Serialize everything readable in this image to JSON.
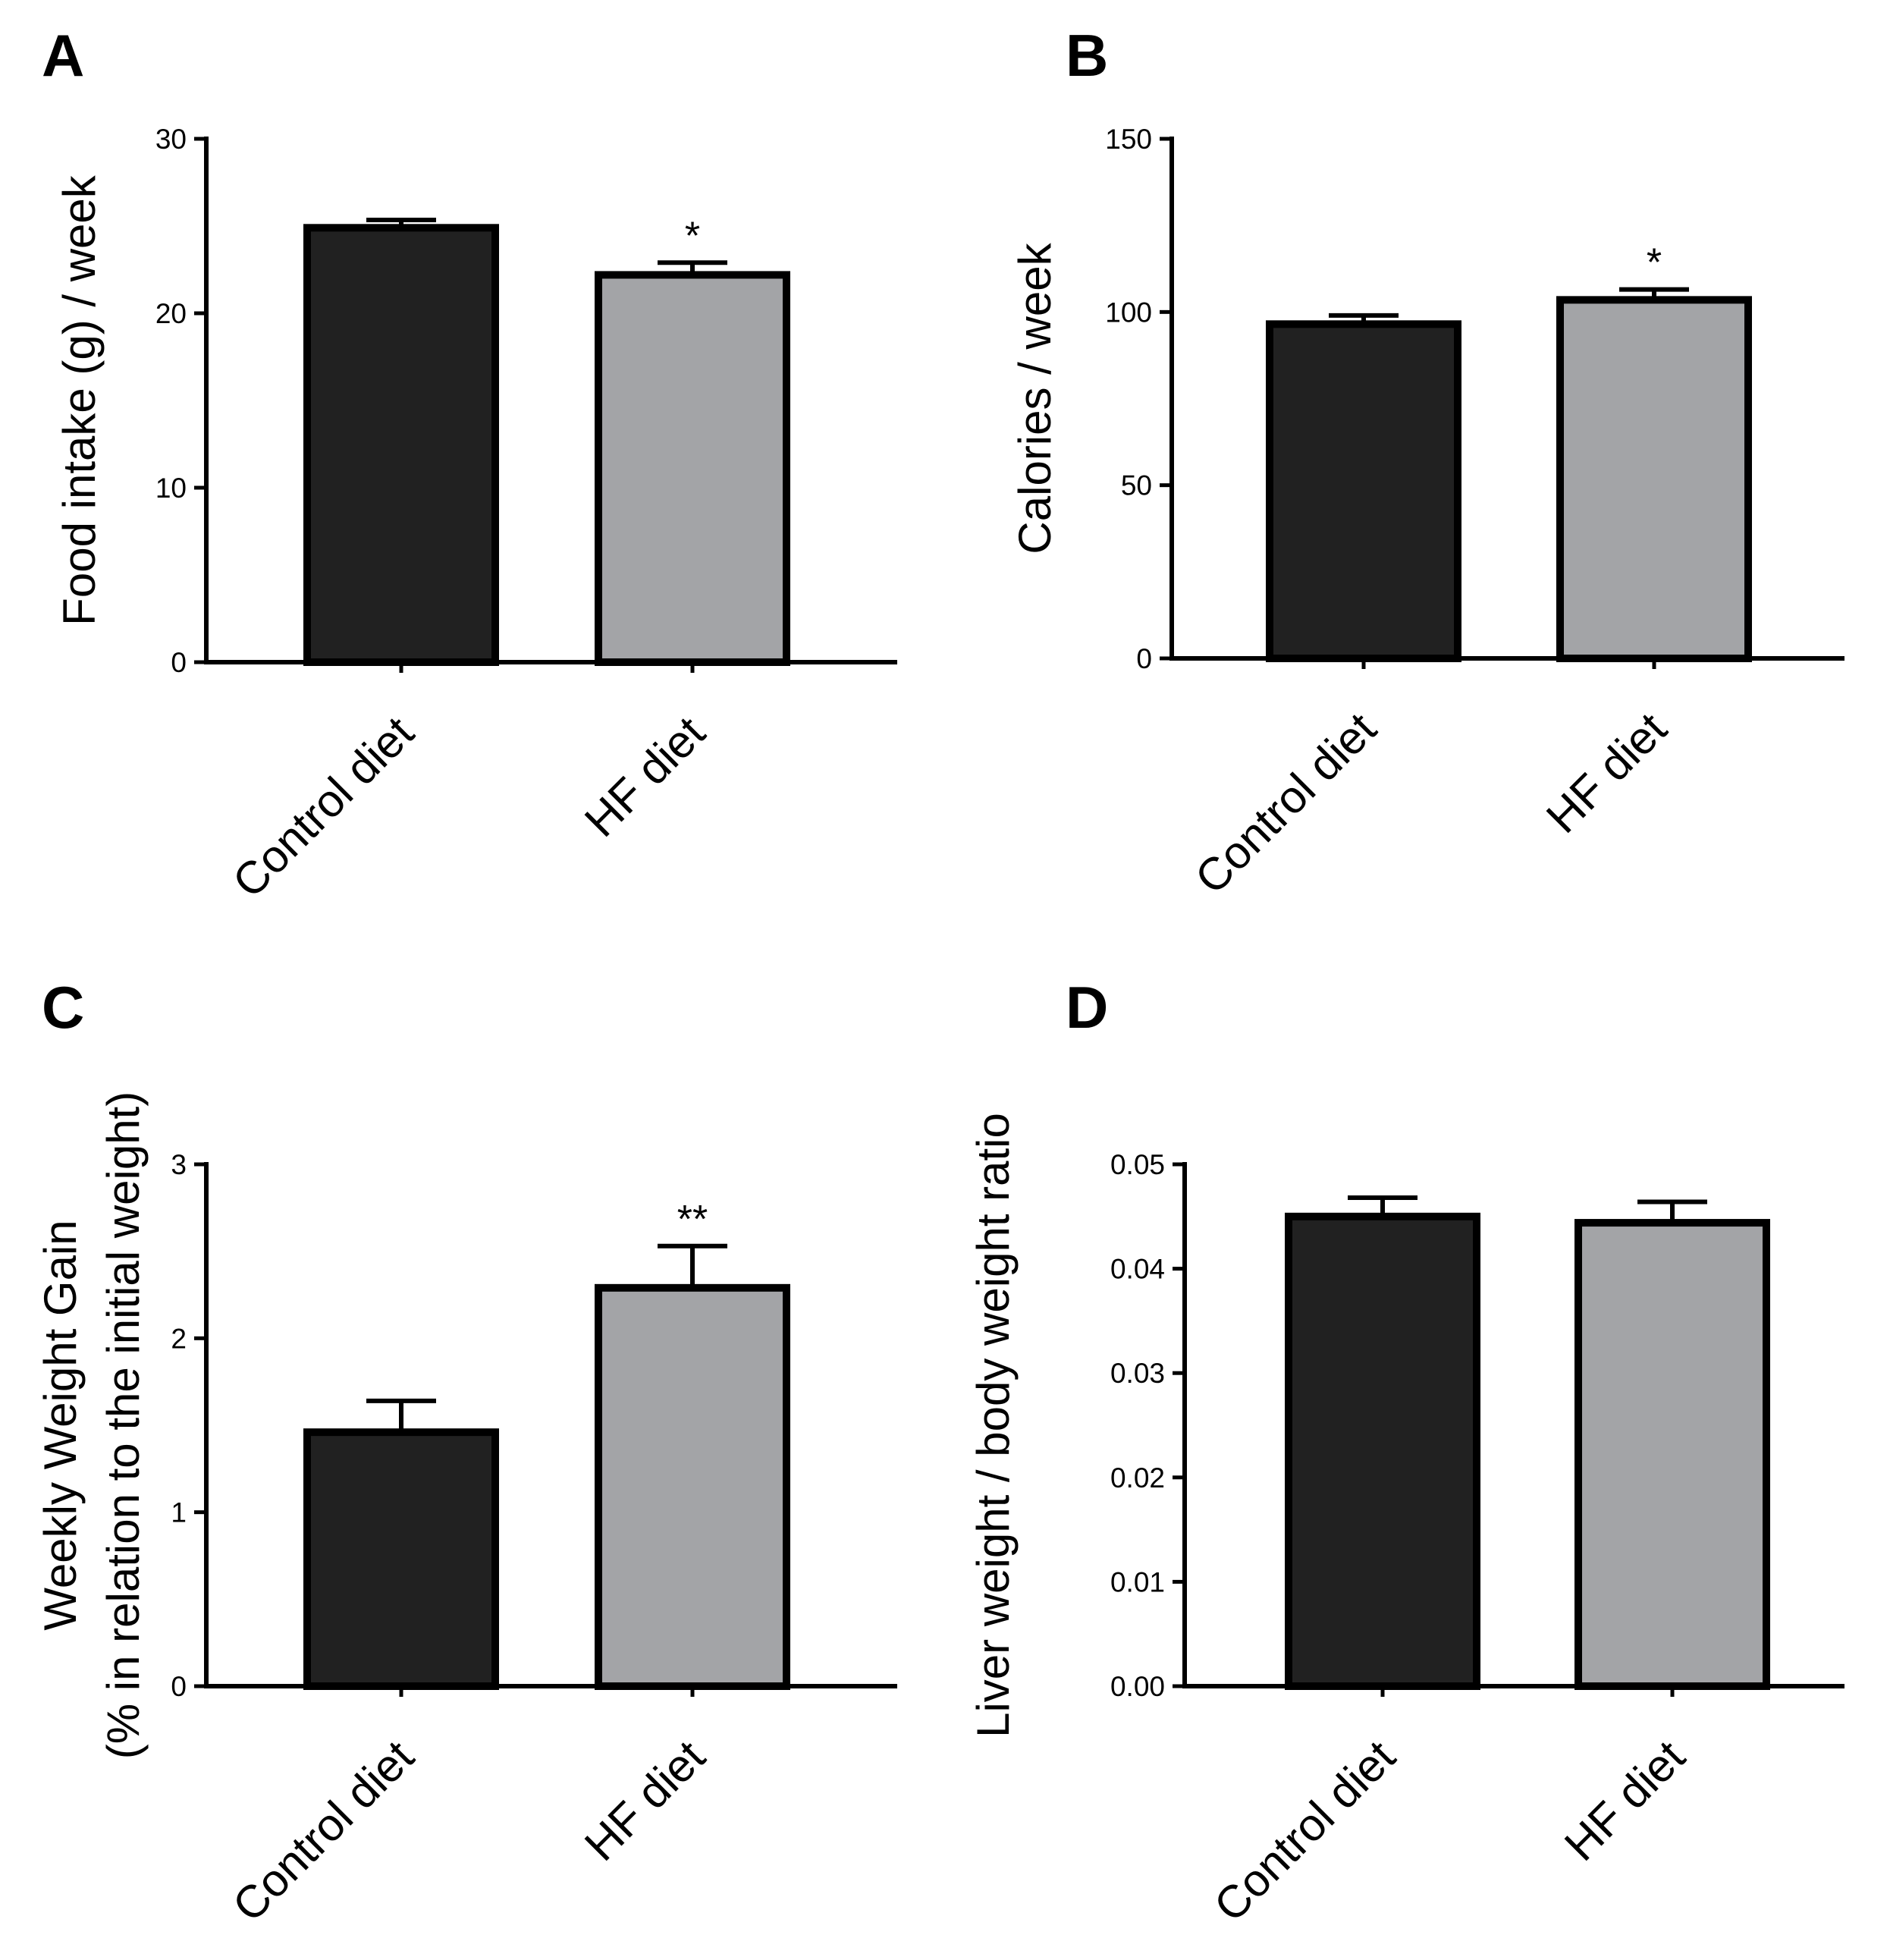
{
  "colors": {
    "control_fill": "#212121",
    "hf_fill": "#a3a4a7",
    "stroke": "#000000"
  },
  "chart_data": [
    {
      "type": "bar",
      "panel": "A",
      "categories": [
        "Control diet",
        "HF diet"
      ],
      "values": [
        24.9,
        22.2
      ],
      "errors": [
        0.45,
        0.7
      ],
      "significance": [
        "",
        "*"
      ],
      "ylabel": "Food intake (g) / week",
      "ylim": [
        0,
        30
      ],
      "yticks": [
        0,
        10,
        20,
        30
      ],
      "ytick_labels": [
        "0",
        "10",
        "20",
        "30"
      ],
      "xlabel": "",
      "title": ""
    },
    {
      "type": "bar",
      "panel": "B",
      "categories": [
        "Control diet",
        "HF diet"
      ],
      "values": [
        96.5,
        103.5
      ],
      "errors": [
        2.5,
        3.0
      ],
      "significance": [
        "",
        "*"
      ],
      "ylabel": "Calories / week",
      "ylim": [
        0,
        150
      ],
      "yticks": [
        0,
        50,
        100,
        150
      ],
      "ytick_labels": [
        "0",
        "50",
        "100",
        "150"
      ],
      "xlabel": "",
      "title": ""
    },
    {
      "type": "bar",
      "panel": "C",
      "categories": [
        "Control diet",
        "HF diet"
      ],
      "values": [
        1.46,
        2.29
      ],
      "errors": [
        0.18,
        0.24
      ],
      "significance": [
        "",
        "**"
      ],
      "ylabel": [
        "Weekly Weight Gain",
        "(% in relation to the initial weight)"
      ],
      "ylim": [
        0,
        3
      ],
      "yticks": [
        0,
        1,
        2,
        3
      ],
      "ytick_labels": [
        "0",
        "1",
        "2",
        "3"
      ],
      "xlabel": "",
      "title": ""
    },
    {
      "type": "bar",
      "panel": "D",
      "categories": [
        "Control diet",
        "HF diet"
      ],
      "values": [
        0.045,
        0.0444
      ],
      "errors": [
        0.0018,
        0.002
      ],
      "significance": [
        "",
        ""
      ],
      "ylabel": "Liver weight / body weight ratio",
      "ylim": [
        0,
        0.05
      ],
      "yticks": [
        0,
        0.01,
        0.02,
        0.03,
        0.04,
        0.05
      ],
      "ytick_labels": [
        "0.00",
        "0.01",
        "0.02",
        "0.03",
        "0.04",
        "0.05"
      ],
      "xlabel": "",
      "title": ""
    }
  ]
}
